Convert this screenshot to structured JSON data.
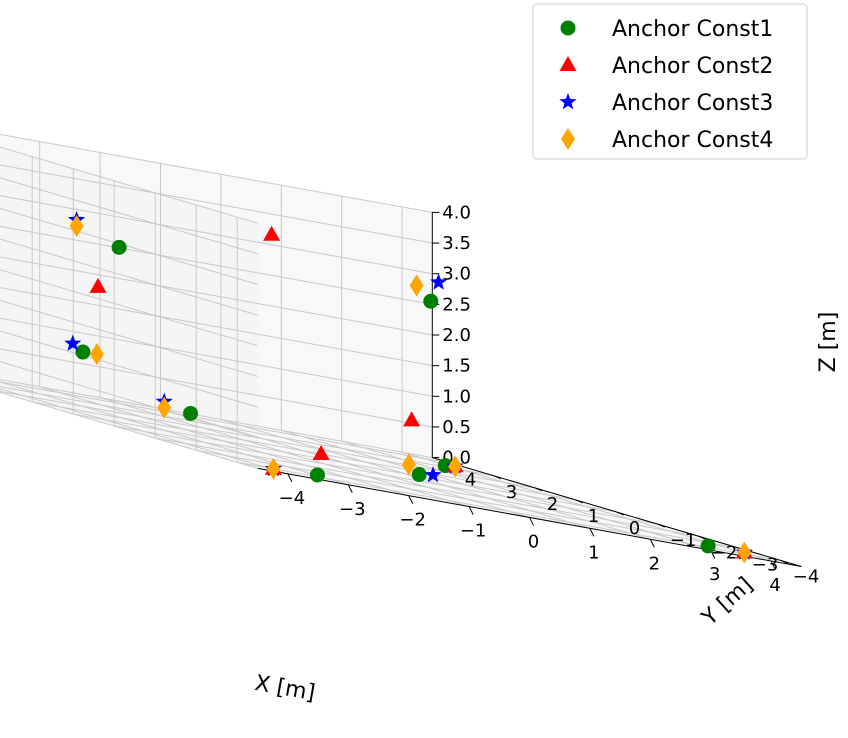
{
  "chart_data": {
    "type": "scatter",
    "projection": "3d",
    "grid": true,
    "legend_position": "top-right",
    "xlabel": "X [m]",
    "ylabel": "Y [m]",
    "zlabel": "Z [m]",
    "xlim": [
      -4.5,
      4.5
    ],
    "ylim": [
      -4.5,
      4.5
    ],
    "zlim": [
      0,
      4
    ],
    "xticks": [
      "−4",
      "−3",
      "−2",
      "−1",
      "0",
      "1",
      "2",
      "3",
      "4"
    ],
    "yticks": [
      "−4",
      "−3",
      "−2",
      "−1",
      "0",
      "1",
      "2",
      "3",
      "4"
    ],
    "zticks": [
      "0.0",
      "0.5",
      "1.0",
      "1.5",
      "2.0",
      "2.5",
      "3.0",
      "3.5",
      "4.0"
    ],
    "series": [
      {
        "name": "Anchor Const1",
        "marker": "circle",
        "color": "#008000",
        "points": [
          {
            "x": -2.9,
            "y": -3.6,
            "z": 0.0
          },
          {
            "x": 3.5,
            "y": -3.7,
            "z": 0.0
          },
          {
            "x": -4.0,
            "y": 0.5,
            "z": 1.0
          },
          {
            "x": 3.9,
            "y": 3.3,
            "z": 0.0
          },
          {
            "x": -1.2,
            "y": 2.0,
            "z": 0.2
          },
          {
            "x": 1.5,
            "y": 0.4,
            "z": 0.0
          },
          {
            "x": -1.5,
            "y": 3.3,
            "z": 2.6
          },
          {
            "x": 4.0,
            "y": 3.8,
            "z": 2.6
          }
        ]
      },
      {
        "name": "Anchor Const2",
        "marker": "triangle",
        "color": "#ff0000",
        "points": [
          {
            "x": -3.9,
            "y": -4.0,
            "z": 0.0
          },
          {
            "x": 4.1,
            "y": -3.7,
            "z": 0.0
          },
          {
            "x": -2.8,
            "y": 1.9,
            "z": 2.0
          },
          {
            "x": 4.2,
            "y": 3.5,
            "z": 0.0
          },
          {
            "x": -0.6,
            "y": -0.3,
            "z": 0.1
          },
          {
            "x": 2.8,
            "y": 2.5,
            "z": 0.7
          },
          {
            "x": 1.5,
            "y": 4.0,
            "z": 3.2
          }
        ]
      },
      {
        "name": "Anchor Const3",
        "marker": "star",
        "color": "#0000ff",
        "points": [
          {
            "x": -3.9,
            "y": -4.0,
            "z": 0.0
          },
          {
            "x": 4.1,
            "y": -3.7,
            "z": 0.0
          },
          {
            "x": -4.1,
            "y": 0.6,
            "z": 1.1
          },
          {
            "x": 4.2,
            "y": 3.5,
            "z": 0.0
          },
          {
            "x": -1.5,
            "y": 2.2,
            "z": 0.3
          },
          {
            "x": 2.0,
            "y": 0.8,
            "z": 0.0
          },
          {
            "x": -2.0,
            "y": 3.6,
            "z": 2.9
          },
          {
            "x": 4.4,
            "y": 4.2,
            "z": 2.9
          }
        ]
      },
      {
        "name": "Anchor Const4",
        "marker": "diamond",
        "color": "#ffa500",
        "points": [
          {
            "x": -3.9,
            "y": -4.0,
            "z": 0.0
          },
          {
            "x": 4.1,
            "y": -3.7,
            "z": 0.0
          },
          {
            "x": -3.7,
            "y": 0.6,
            "z": 1.0
          },
          {
            "x": 4.2,
            "y": 3.5,
            "z": 0.0
          },
          {
            "x": -1.5,
            "y": 2.2,
            "z": 0.2
          },
          {
            "x": 1.6,
            "y": 0.8,
            "z": 0.1
          },
          {
            "x": -2.0,
            "y": 3.6,
            "z": 2.8
          },
          {
            "x": 3.9,
            "y": 4.0,
            "z": 2.8
          }
        ]
      }
    ]
  }
}
